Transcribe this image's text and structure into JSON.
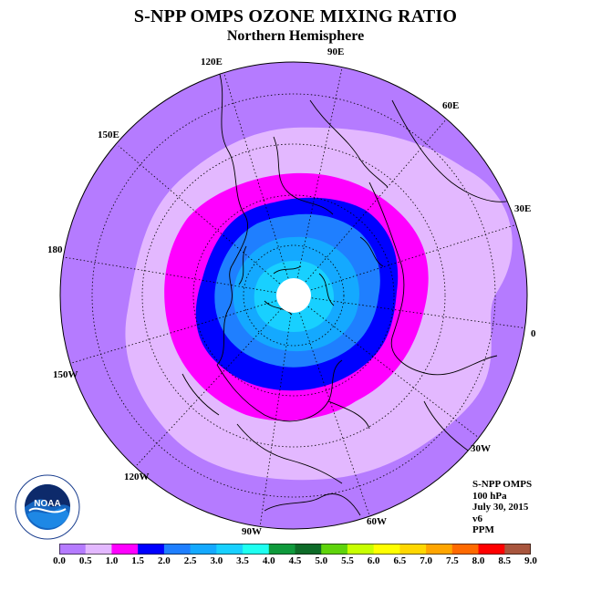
{
  "title": "S-NPP OMPS OZONE MIXING RATIO",
  "subtitle": "Northern Hemisphere",
  "longitude_labels": [
    "90E",
    "60E",
    "30E",
    "0",
    "30W",
    "60W",
    "90W",
    "120W",
    "150W",
    "180",
    "150E",
    "120E"
  ],
  "info": {
    "instrument": "S-NPP OMPS",
    "level": "100 hPa",
    "date": "July 30, 2015",
    "version": "v6",
    "units": "PPM"
  },
  "logo": {
    "text": "NOAA",
    "icon": "noaa-logo"
  },
  "colorbar": {
    "ticks": [
      "0.0",
      "0.5",
      "1.0",
      "1.5",
      "2.0",
      "2.5",
      "3.0",
      "3.5",
      "4.0",
      "4.5",
      "5.0",
      "5.5",
      "6.0",
      "6.5",
      "7.0",
      "7.5",
      "8.0",
      "8.5",
      "9.0"
    ],
    "colors": [
      "#b57bff",
      "#e3b8ff",
      "#ff00ff",
      "#0000ff",
      "#1f7fff",
      "#14a9ff",
      "#18d0ff",
      "#1ffff0",
      "#0f9a3c",
      "#0d6b28",
      "#5fd40b",
      "#c8ff00",
      "#ffff00",
      "#ffd700",
      "#ffa500",
      "#ff6a00",
      "#ff0000",
      "#a8553d"
    ]
  }
}
